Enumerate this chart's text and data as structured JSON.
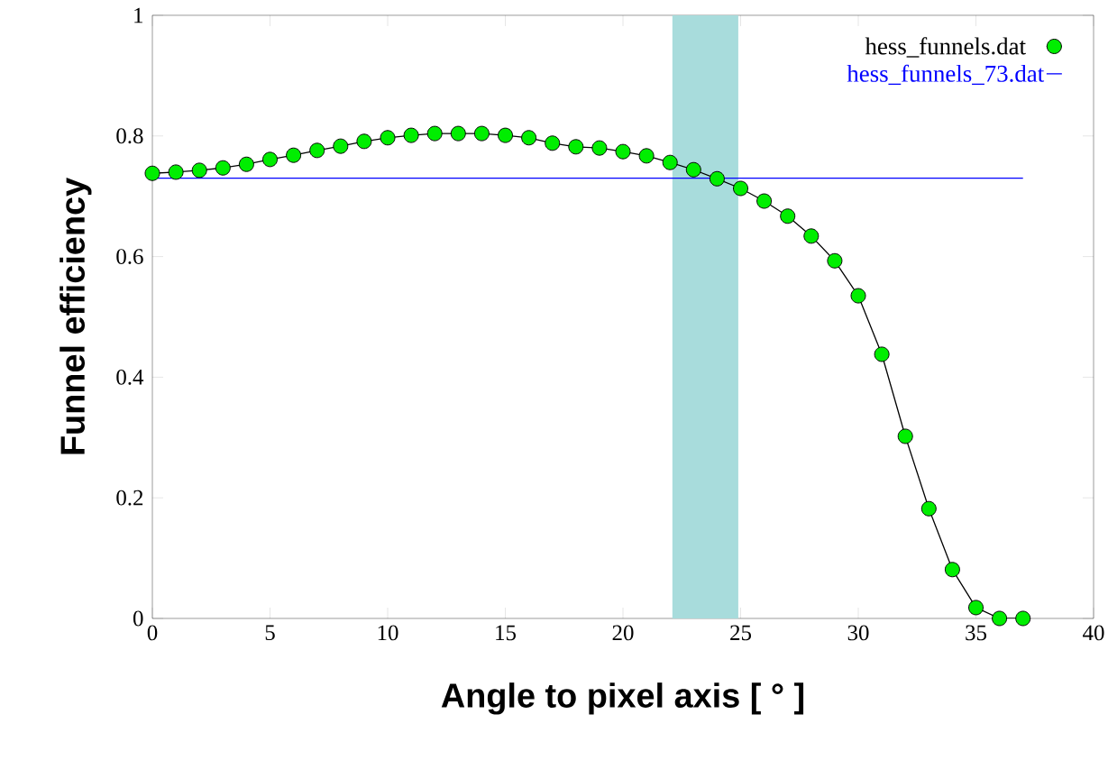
{
  "chart_data": {
    "type": "line",
    "xlabel": "Angle to pixel axis  [ ° ]",
    "ylabel": "Funnel efficiency",
    "xlim": [
      0,
      40
    ],
    "ylim": [
      0,
      1
    ],
    "xticks": [
      0,
      5,
      10,
      15,
      20,
      25,
      30,
      35,
      40
    ],
    "yticks": [
      0,
      0.2,
      0.4,
      0.6,
      0.8,
      1
    ],
    "grid": false,
    "legend": "top right",
    "series": [
      {
        "name": "hess_funnels.dat",
        "color": "#00ee00",
        "marker": "circle",
        "line_style": "solid",
        "x": [
          0,
          1,
          2,
          3,
          4,
          5,
          6,
          7,
          8,
          9,
          10,
          11,
          12,
          13,
          14,
          15,
          16,
          17,
          18,
          19,
          20,
          21,
          22,
          23,
          24,
          25,
          26,
          27,
          28,
          29,
          30,
          31,
          32,
          33,
          34,
          35,
          36,
          37
        ],
        "values": [
          0.738,
          0.74,
          0.743,
          0.747,
          0.753,
          0.761,
          0.768,
          0.776,
          0.783,
          0.791,
          0.797,
          0.801,
          0.804,
          0.804,
          0.804,
          0.801,
          0.797,
          0.788,
          0.782,
          0.78,
          0.774,
          0.767,
          0.756,
          0.744,
          0.729,
          0.713,
          0.692,
          0.667,
          0.634,
          0.593,
          0.535,
          0.438,
          0.302,
          0.182,
          0.081,
          0.018,
          0.0,
          0.0
        ]
      },
      {
        "name": "hess_funnels_73.dat",
        "color": "#0000ff",
        "marker": "none",
        "line_style": "solid",
        "x": [
          0,
          37
        ],
        "values": [
          0.73,
          0.73
        ]
      }
    ],
    "bands": [
      {
        "axis": "x",
        "from": 22.1,
        "to": 24.9,
        "color": "#a8dcdc"
      }
    ]
  }
}
